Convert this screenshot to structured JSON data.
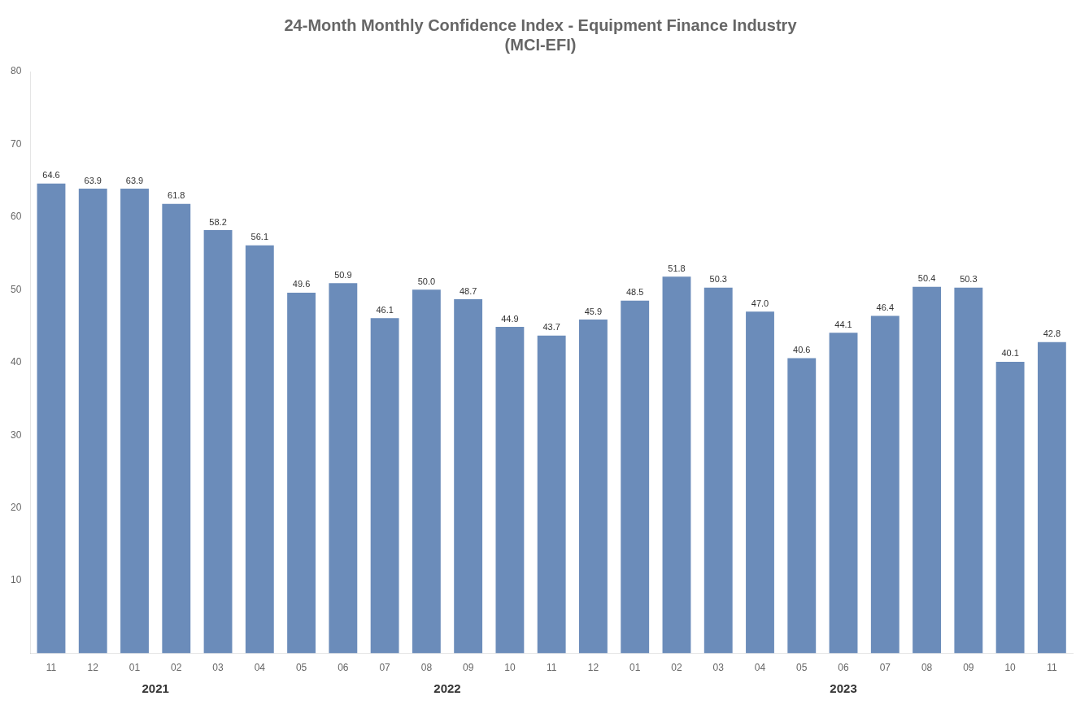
{
  "chart_data": {
    "type": "bar",
    "title": "24-Month Monthly Confidence Index - Equipment Finance Industry\n(MCI-EFI)",
    "categories": [
      "11",
      "12",
      "01",
      "02",
      "03",
      "04",
      "05",
      "06",
      "07",
      "08",
      "09",
      "10",
      "11",
      "12",
      "01",
      "02",
      "03",
      "04",
      "05",
      "06",
      "07",
      "08",
      "09",
      "10",
      "11"
    ],
    "values": [
      64.6,
      63.9,
      63.9,
      61.8,
      58.2,
      56.1,
      49.6,
      50.9,
      46.1,
      50.0,
      48.7,
      44.9,
      43.7,
      45.9,
      48.5,
      51.8,
      50.3,
      47.0,
      40.6,
      44.1,
      46.4,
      50.4,
      50.3,
      40.1,
      42.8
    ],
    "value_labels": [
      "64.6",
      "63.9",
      "63.9",
      "61.8",
      "58.2",
      "56.1",
      "49.6",
      "50.9",
      "46.1",
      "50.0",
      "48.7",
      "44.9",
      "43.7",
      "45.9",
      "48.5",
      "51.8",
      "50.3",
      "47.0",
      "40.6",
      "44.1",
      "46.4",
      "50.4",
      "50.3",
      "40.1",
      "42.8"
    ],
    "color": "#6b8cba",
    "ylim": [
      0,
      80
    ],
    "yticks": [
      10,
      20,
      30,
      40,
      50,
      60,
      70,
      80
    ],
    "grid": false,
    "data_labels": true,
    "annotations": [
      {
        "text": "2021",
        "indices": [
          0,
          1,
          2,
          3,
          4,
          5
        ]
      },
      {
        "text": "2022",
        "indices": [
          6,
          7,
          8,
          9,
          10,
          11,
          12,
          13
        ]
      },
      {
        "text": "2023",
        "indices": [
          14,
          15,
          16,
          17,
          18,
          19,
          20,
          21,
          22,
          23,
          24
        ]
      }
    ]
  }
}
